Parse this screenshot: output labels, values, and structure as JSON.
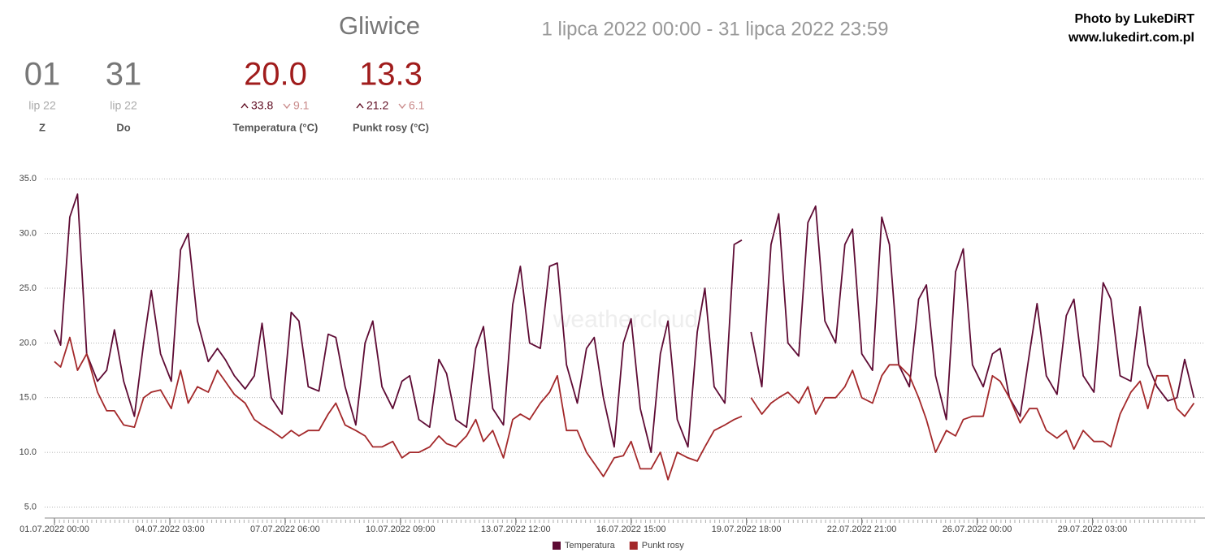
{
  "header": {
    "station": "Gliwice",
    "range": "1 lipca 2022 00:00 - 31 lipca 2022 23:59",
    "credit": "Photo by LukeDiRT",
    "url": "www.lukedirt.com.pl"
  },
  "stats": [
    {
      "value": "01",
      "sub": "lip 22",
      "label": "Z"
    },
    {
      "value": "31",
      "sub": "lip 22",
      "label": "Do"
    },
    {
      "value": "20.0",
      "max": "33.8",
      "min": "9.1",
      "label": "Temperatura (°C)"
    },
    {
      "value": "13.3",
      "max": "21.2",
      "min": "6.1",
      "label": "Punkt rosy (°C)"
    }
  ],
  "chart_data": {
    "type": "line",
    "watermark": "weathercloud",
    "x": [
      "01.07.2022 00:00",
      "01.07.2022 04:00",
      "01.07.2022 10:00",
      "01.07.2022 15:00",
      "01.07.2022 21:00",
      "02.07.2022 04:00",
      "02.07.2022 10:00",
      "02.07.2022 15:00",
      "02.07.2022 21:00",
      "03.07.2022 04:00",
      "03.07.2022 10:00",
      "03.07.2022 15:00",
      "03.07.2022 21:00",
      "04.07.2022 04:00",
      "04.07.2022 10:00",
      "04.07.2022 15:00",
      "04.07.2022 21:00",
      "05.07.2022 04:00",
      "05.07.2022 10:00",
      "05.07.2022 15:00",
      "05.07.2022 21:00",
      "06.07.2022 04:00",
      "06.07.2022 10:00",
      "06.07.2022 15:00",
      "06.07.2022 21:00",
      "07.07.2022 04:00",
      "07.07.2022 10:00",
      "07.07.2022 15:00",
      "07.07.2022 21:00",
      "08.07.2022 04:00",
      "08.07.2022 10:00",
      "08.07.2022 15:00",
      "08.07.2022 21:00",
      "09.07.2022 04:00",
      "09.07.2022 10:00",
      "09.07.2022 15:00",
      "09.07.2022 21:00",
      "10.07.2022 04:00",
      "10.07.2022 10:00",
      "10.07.2022 15:00",
      "10.07.2022 21:00",
      "11.07.2022 04:00",
      "11.07.2022 10:00",
      "11.07.2022 15:00",
      "11.07.2022 21:00",
      "12.07.2022 04:00",
      "12.07.2022 10:00",
      "12.07.2022 15:00",
      "12.07.2022 21:00",
      "13.07.2022 04:00",
      "13.07.2022 10:00",
      "13.07.2022 15:00",
      "13.07.2022 21:00",
      "14.07.2022 04:00",
      "14.07.2022 10:00",
      "14.07.2022 15:00",
      "14.07.2022 21:00",
      "15.07.2022 04:00",
      "15.07.2022 10:00",
      "15.07.2022 15:00",
      "15.07.2022 21:00",
      "16.07.2022 04:00",
      "16.07.2022 10:00",
      "16.07.2022 15:00",
      "16.07.2022 21:00",
      "17.07.2022 04:00",
      "17.07.2022 10:00",
      "17.07.2022 15:00",
      "17.07.2022 21:00",
      "18.07.2022 04:00",
      "18.07.2022 10:00",
      "18.07.2022 15:00",
      "18.07.2022 21:00",
      "19.07.2022 04:00",
      "19.07.2022 10:00",
      "19.07.2022 15:00",
      "19.07.2022 18:00",
      "19.07.2022 21:00",
      "20.07.2022 04:00",
      "20.07.2022 10:00",
      "20.07.2022 15:00",
      "20.07.2022 21:00",
      "21.07.2022 04:00",
      "21.07.2022 10:00",
      "21.07.2022 15:00",
      "21.07.2022 21:00",
      "22.07.2022 04:00",
      "22.07.2022 10:00",
      "22.07.2022 15:00",
      "22.07.2022 21:00",
      "23.07.2022 04:00",
      "23.07.2022 10:00",
      "23.07.2022 15:00",
      "23.07.2022 21:00",
      "24.07.2022 04:00",
      "24.07.2022 10:00",
      "24.07.2022 15:00",
      "24.07.2022 21:00",
      "25.07.2022 04:00",
      "25.07.2022 10:00",
      "25.07.2022 15:00",
      "25.07.2022 21:00",
      "26.07.2022 04:00",
      "26.07.2022 10:00",
      "26.07.2022 15:00",
      "26.07.2022 21:00",
      "27.07.2022 04:00",
      "27.07.2022 10:00",
      "27.07.2022 15:00",
      "27.07.2022 21:00",
      "28.07.2022 04:00",
      "28.07.2022 10:00",
      "28.07.2022 15:00",
      "28.07.2022 21:00",
      "29.07.2022 04:00",
      "29.07.2022 10:00",
      "29.07.2022 15:00",
      "29.07.2022 21:00",
      "30.07.2022 04:00",
      "30.07.2022 10:00",
      "30.07.2022 15:00",
      "30.07.2022 21:00",
      "31.07.2022 04:00",
      "31.07.2022 10:00",
      "31.07.2022 15:00",
      "31.07.2022 21:00"
    ],
    "series": [
      {
        "name": "Temperatura",
        "color": "#5e0b34",
        "values": [
          21.2,
          19.8,
          31.5,
          33.6,
          19,
          16.5,
          17.5,
          21.2,
          16.5,
          13.3,
          20,
          24.8,
          19,
          16.5,
          28.5,
          30,
          22,
          18.3,
          19.5,
          18.5,
          17,
          15.8,
          17,
          21.8,
          15,
          13.5,
          22.8,
          22,
          16,
          15.6,
          20.8,
          20.5,
          16,
          12.5,
          20,
          22,
          16,
          14,
          16.5,
          17,
          13,
          12.3,
          18.5,
          17.2,
          13,
          12.3,
          19.5,
          21.5,
          14,
          12.5,
          23.5,
          27,
          20,
          19.5,
          27,
          27.3,
          18,
          14.5,
          19.5,
          20.5,
          15,
          10.5,
          20,
          22.2,
          14,
          10,
          19,
          22,
          13,
          10.5,
          21,
          25,
          16,
          14.5,
          29,
          29.4,
          null,
          21,
          16,
          29,
          31.8,
          20,
          18.8,
          31,
          32.5,
          22,
          20,
          29,
          30.4,
          19,
          17.5,
          31.5,
          29,
          18,
          16,
          24,
          25.3,
          17,
          13,
          26.5,
          28.6,
          18,
          16,
          19,
          19.5,
          15,
          13.3,
          19,
          23.6,
          17,
          15.3,
          22.5,
          24,
          17,
          15.5,
          25.5,
          24,
          17,
          16.5,
          23.3,
          18,
          16,
          14.7,
          15,
          18.5,
          15
        ]
      },
      {
        "name": "Punkt rosy",
        "color": "#a3282a",
        "values": [
          18.3,
          17.8,
          20.5,
          17.5,
          19,
          15.5,
          13.8,
          13.8,
          12.5,
          12.3,
          15,
          15.5,
          15.7,
          14,
          17.5,
          14.5,
          16,
          15.5,
          17.5,
          16.5,
          15.3,
          14.5,
          13,
          12.5,
          12,
          11.3,
          12,
          11.5,
          12,
          12,
          13.5,
          14.5,
          12.5,
          12,
          11.5,
          10.5,
          10.5,
          11,
          9.5,
          10,
          10,
          10.5,
          11.5,
          10.8,
          10.5,
          11.5,
          13,
          11,
          12,
          9.5,
          13,
          13.5,
          13,
          14.5,
          15.5,
          17,
          12,
          12,
          10,
          9,
          7.8,
          9.5,
          9.7,
          11,
          8.5,
          8.5,
          10,
          7.5,
          10,
          9.5,
          9.2,
          10.5,
          12,
          12.5,
          13,
          13.3,
          null,
          15,
          13.5,
          14.5,
          15,
          15.5,
          14.5,
          16,
          13.5,
          15,
          15,
          16,
          17.5,
          15,
          14.5,
          17,
          18,
          18,
          17,
          15,
          13,
          10,
          12,
          11.5,
          13,
          13.3,
          13.3,
          17,
          16.5,
          15,
          12.7,
          14,
          14,
          12,
          11.3,
          12,
          10.3,
          12,
          11,
          11,
          10.5,
          13.5,
          15.5,
          16.5,
          14,
          17,
          17,
          14,
          13.3,
          14.5
        ]
      }
    ],
    "xlim": [
      "01.07.2022 00:00",
      "31.07.2022 23:59"
    ],
    "xticks": [
      "01.07.2022 00:00",
      "04.07.2022 03:00",
      "07.07.2022 06:00",
      "10.07.2022 09:00",
      "13.07.2022 12:00",
      "16.07.2022 15:00",
      "19.07.2022 18:00",
      "22.07.2022 21:00",
      "26.07.2022 00:00",
      "29.07.2022 03:00"
    ],
    "ylim": [
      4,
      36.5
    ],
    "yticks": [
      {
        "value": 5,
        "label": "5.0"
      },
      {
        "value": 10,
        "label": "10.0"
      },
      {
        "value": 15,
        "label": "15.0"
      },
      {
        "value": 20,
        "label": "20.0"
      },
      {
        "value": 25,
        "label": "25.0"
      },
      {
        "value": 30,
        "label": "30.0"
      },
      {
        "value": 35,
        "label": "35.0"
      }
    ],
    "grid": true,
    "legend": "bottom"
  }
}
